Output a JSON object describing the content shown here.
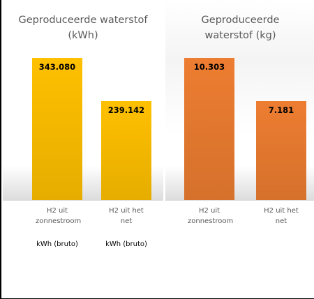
{
  "chart_data": [
    {
      "type": "bar",
      "title": "Geproduceerde waterstof (kWh)",
      "categories": [
        "H2 uit zonnestroom",
        "H2 uit het net"
      ],
      "sublabels": [
        "kWh (bruto)",
        "kWh (bruto)"
      ],
      "values": [
        343080,
        239142
      ],
      "value_labels": [
        "343.080",
        "239.142"
      ],
      "color": "#ffc000"
    },
    {
      "type": "bar",
      "title": "Geproduceerde waterstof (kg)",
      "categories": [
        "H2 uit zonnestroom",
        "H2 uit het net"
      ],
      "values": [
        10303,
        7181
      ],
      "value_labels": [
        "10.303",
        "7.181"
      ],
      "color": "#ed7d31"
    }
  ]
}
